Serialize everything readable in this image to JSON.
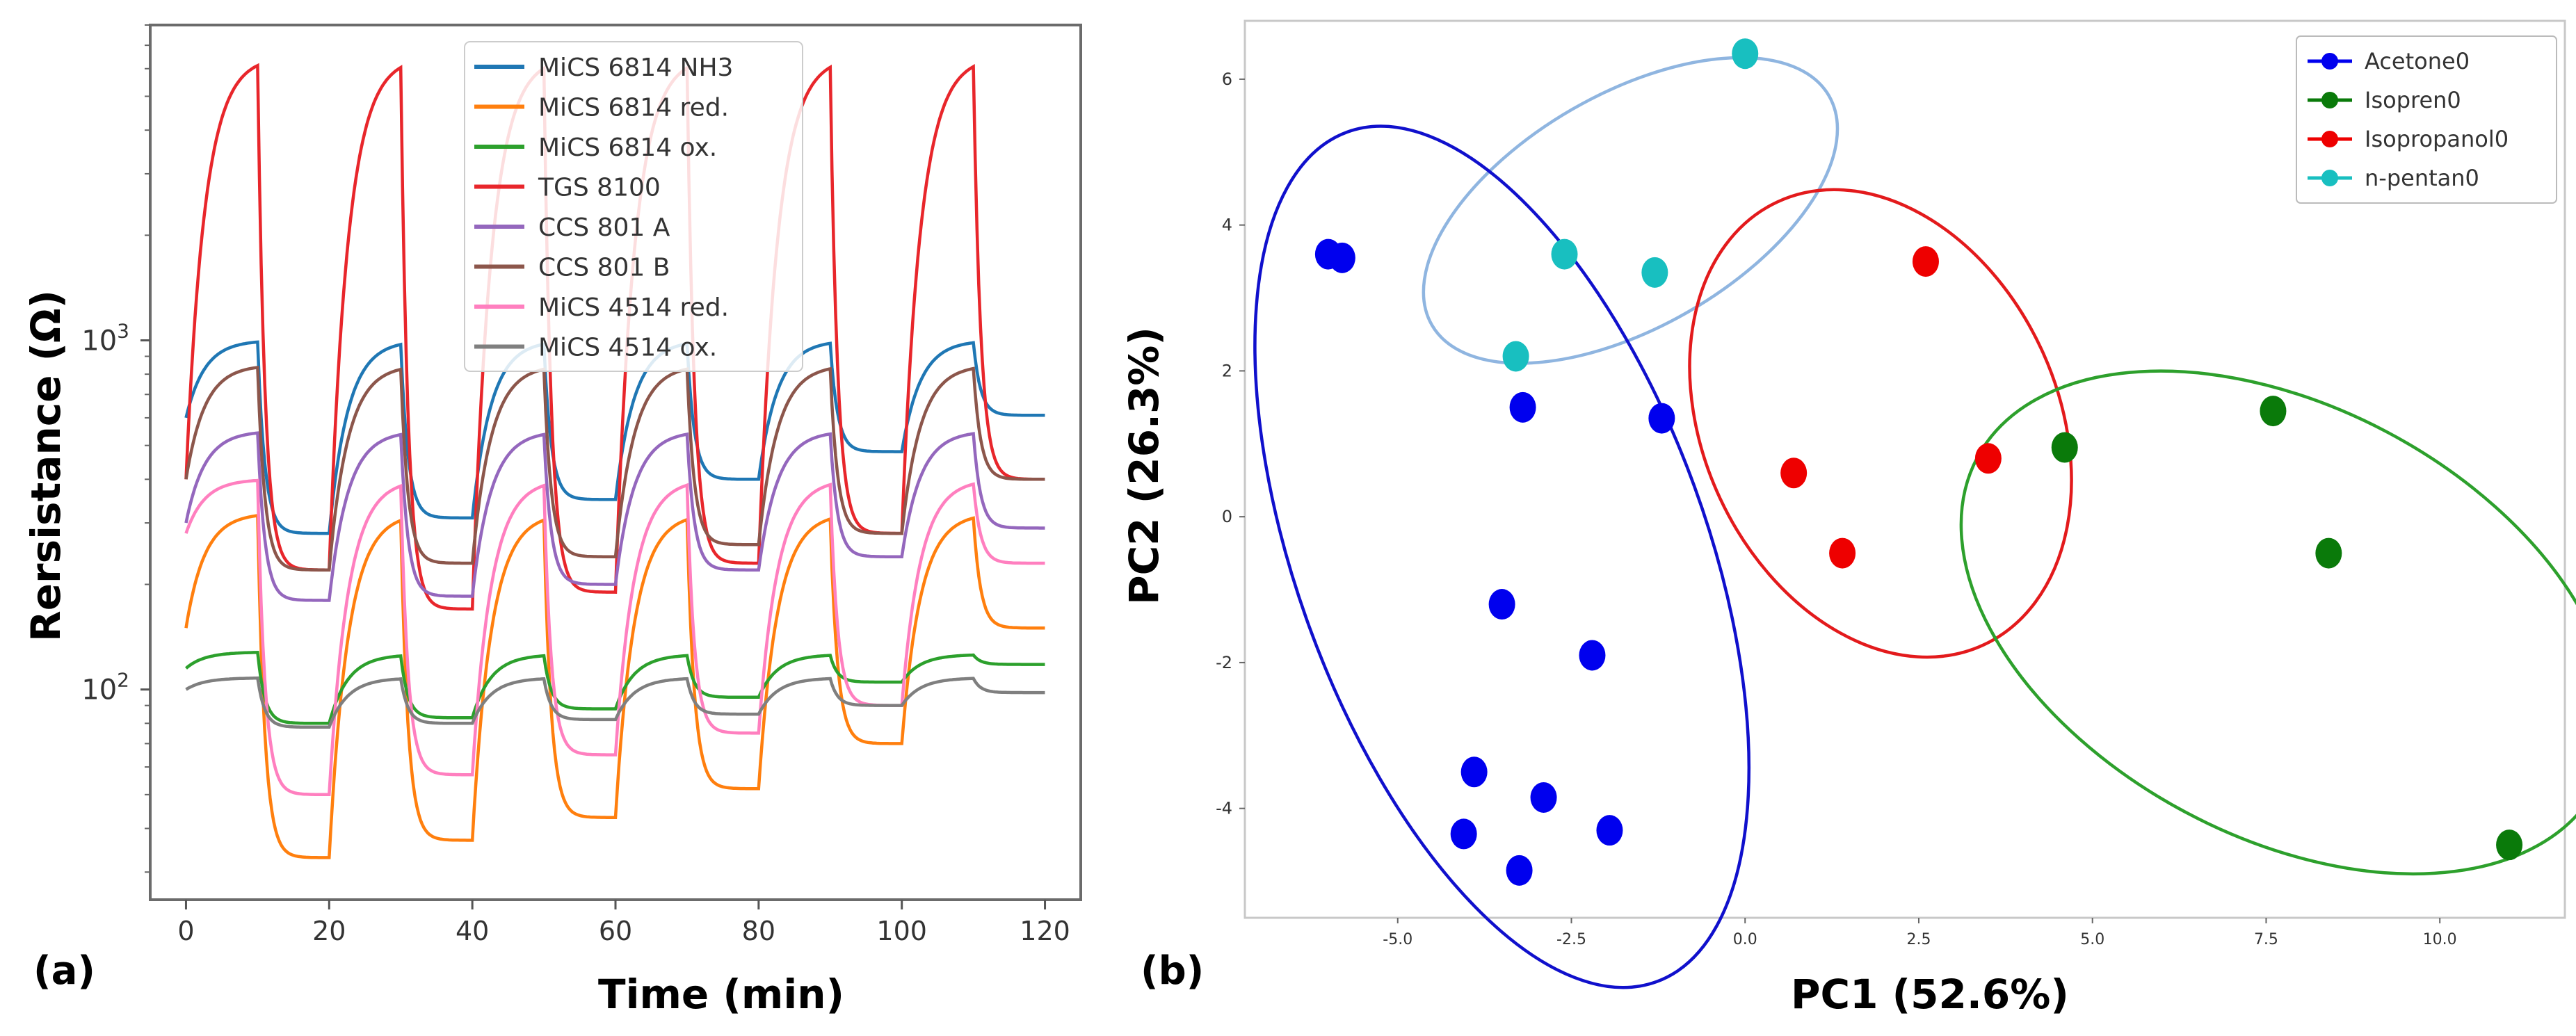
{
  "charts": [
    {
      "panel_label": "(a)",
      "chart_data": {
        "type": "line",
        "xlabel": "Time (min)",
        "ylabel": "Rersistance (Ω)",
        "yscale": "log",
        "xlim": [
          -5,
          125
        ],
        "ylim": [
          25,
          8000
        ],
        "xticks": [
          "0",
          "20",
          "40",
          "60",
          "80",
          "100",
          "120"
        ],
        "yticks": [
          {
            "base": "10",
            "exp": "2"
          },
          {
            "base": "10",
            "exp": "3"
          }
        ],
        "legend_location": "upper-center",
        "phases": {
          "on": [
            [
              0,
              10
            ],
            [
              20,
              30
            ],
            [
              40,
              50
            ],
            [
              60,
              70
            ],
            [
              80,
              90
            ],
            [
              100,
              110
            ]
          ],
          "end": 120
        },
        "series": [
          {
            "name": "MiCS 6814 NH3",
            "color": "#1f77b4",
            "base": 600,
            "on_levels": [
              1000,
              1000,
              1000,
              1000,
              1000,
              1000
            ],
            "off_levels": [
              280,
              310,
              350,
              400,
              480,
              610
            ]
          },
          {
            "name": "MiCS 6814 red.",
            "color": "#ff7f0e",
            "base": 150,
            "on_levels": [
              320,
              320,
              320,
              320,
              320,
              320
            ],
            "off_levels": [
              33,
              37,
              43,
              52,
              70,
              150
            ]
          },
          {
            "name": "MiCS 6814 ox.",
            "color": "#2ca02c",
            "base": 115,
            "on_levels": [
              128,
              126,
              126,
              126,
              126,
              126
            ],
            "off_levels": [
              80,
              83,
              88,
              95,
              105,
              118
            ]
          },
          {
            "name": "TGS 8100",
            "color": "#e8262b",
            "base": 400,
            "on_levels": [
              6500,
              6500,
              6500,
              6500,
              6500,
              6500
            ],
            "off_levels": [
              220,
              170,
              190,
              230,
              280,
              400
            ]
          },
          {
            "name": "CCS 801 A",
            "color": "#9467bd",
            "base": 300,
            "on_levels": [
              550,
              550,
              550,
              550,
              550,
              550
            ],
            "off_levels": [
              180,
              185,
              200,
              220,
              240,
              290
            ]
          },
          {
            "name": "CCS 801 B",
            "color": "#8c564b",
            "base": 400,
            "on_levels": [
              850,
              850,
              850,
              850,
              850,
              850
            ],
            "off_levels": [
              220,
              230,
              240,
              260,
              280,
              400
            ]
          },
          {
            "name": "MiCS 4514 red.",
            "color": "#ff7fbf",
            "base": 280,
            "on_levels": [
              400,
              400,
              400,
              400,
              400,
              400
            ],
            "off_levels": [
              50,
              57,
              65,
              75,
              90,
              230
            ]
          },
          {
            "name": "MiCS 4514 ox.",
            "color": "#7f7f7f",
            "base": 100,
            "on_levels": [
              108,
              108,
              108,
              108,
              108,
              108
            ],
            "off_levels": [
              78,
              80,
              82,
              85,
              90,
              98
            ]
          }
        ]
      }
    },
    {
      "panel_label": "(b)",
      "chart_data": {
        "type": "scatter",
        "xlabel": "PC1 (52.6%)",
        "ylabel": "PC2 (26.3%)",
        "xlim": [
          -7.2,
          11.8
        ],
        "ylim": [
          -5.5,
          6.8
        ],
        "xticks": [
          -5.0,
          -2.5,
          0.0,
          2.5,
          5.0,
          7.5,
          10.0
        ],
        "xtick_labels": [
          "-5.0",
          "-2.5",
          "0.0",
          "2.5",
          "5.0",
          "7.5",
          "10.0"
        ],
        "yticks": [
          -4,
          -2,
          0,
          2,
          4,
          6
        ],
        "ytick_labels": [
          "-4",
          "-2",
          "0",
          "2",
          "4",
          "6"
        ],
        "legend_location": "top-right",
        "series": [
          {
            "name": "Acetone0",
            "color": "#0000ee",
            "points": [
              [
                -6.0,
                3.6
              ],
              [
                -5.8,
                3.55
              ],
              [
                -3.2,
                1.5
              ],
              [
                -1.2,
                1.35
              ],
              [
                -3.5,
                -1.2
              ],
              [
                -2.2,
                -1.9
              ],
              [
                -3.9,
                -3.5
              ],
              [
                -2.9,
                -3.85
              ],
              [
                -4.05,
                -4.35
              ],
              [
                -3.25,
                -4.85
              ],
              [
                -1.95,
                -4.3
              ]
            ]
          },
          {
            "name": "Isopren0",
            "color": "#0a7a0a",
            "points": [
              [
                4.6,
                0.95
              ],
              [
                7.6,
                1.45
              ],
              [
                8.4,
                -0.5
              ],
              [
                11.0,
                -4.5
              ]
            ]
          },
          {
            "name": "Isopropanol0",
            "color": "#ee0000",
            "points": [
              [
                2.6,
                3.5
              ],
              [
                0.7,
                0.6
              ],
              [
                3.5,
                0.8
              ],
              [
                1.4,
                -0.5
              ]
            ]
          },
          {
            "name": "n-pentan0",
            "color": "#18bfc0",
            "points": [
              [
                0.0,
                6.35
              ],
              [
                -2.6,
                3.6
              ],
              [
                -1.3,
                3.35
              ],
              [
                -3.3,
                2.2
              ]
            ]
          }
        ],
        "ellipses": [
          {
            "group": "n-pentan0",
            "color": "#8fb5e0",
            "cx": -1.65,
            "cy": 4.2,
            "rx": 3.3,
            "ry": 1.6,
            "angle": 30
          },
          {
            "group": "Acetone0",
            "color": "#1010cc",
            "cx": -3.5,
            "cy": -0.55,
            "rx": 2.95,
            "ry": 6.2,
            "angle": 20
          },
          {
            "group": "Isopropanol0",
            "color": "#e31a1c",
            "cx": 1.95,
            "cy": 1.28,
            "rx": 2.55,
            "ry": 3.35,
            "angle": 25
          },
          {
            "group": "Isopren0",
            "color": "#2da02c",
            "cx": 7.8,
            "cy": -1.45,
            "rx": 5.05,
            "ry": 2.95,
            "angle": -28
          }
        ]
      }
    }
  ]
}
